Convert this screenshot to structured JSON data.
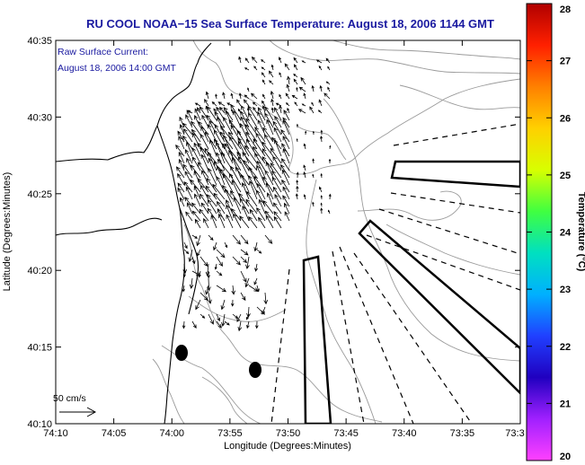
{
  "title": "RU COOL  NOAA−15  Sea Surface Temperature:  August 18, 2006 1144 GMT",
  "annotation": {
    "line1": "Raw Surface Current:",
    "line2": "August 18, 2006 14:00 GMT"
  },
  "scale_label": "50 cm/s",
  "x_axis": {
    "label": "Longitude (Degrees:Minutes)",
    "ticks": [
      "74:10",
      "74:05",
      "74:00",
      "73:55",
      "73:50",
      "73:45",
      "73:40",
      "73:35",
      "73:3"
    ]
  },
  "y_axis": {
    "label": "Latitude (Degrees:Minutes)",
    "ticks": [
      "40:35",
      "40:30",
      "40:25",
      "40:20",
      "40:15",
      "40:10"
    ]
  },
  "colorbar": {
    "label": "Temperature (°C)",
    "ticks": [
      "28",
      "27",
      "26",
      "25",
      "24",
      "23",
      "22",
      "21",
      "20"
    ],
    "colors": [
      "#b00000",
      "#ff2000",
      "#ff8000",
      "#ffd000",
      "#d8ff00",
      "#40ff40",
      "#00e0c0",
      "#00b0ff",
      "#2040ff",
      "#2000c0",
      "#a020ff",
      "#ff40ff"
    ]
  },
  "colors": {
    "title": "#1a1aa0",
    "contour": "#9a9a9a",
    "coast": "#000000"
  }
}
